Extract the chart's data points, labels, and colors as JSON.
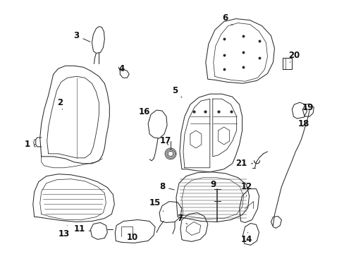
{
  "bg_color": "#ffffff",
  "fig_width": 4.89,
  "fig_height": 3.6,
  "dpi": 100,
  "line_color": "#2a2a2a",
  "font_size": 8.5,
  "arrow_color": "#2a2a2a",
  "lw": 0.75
}
